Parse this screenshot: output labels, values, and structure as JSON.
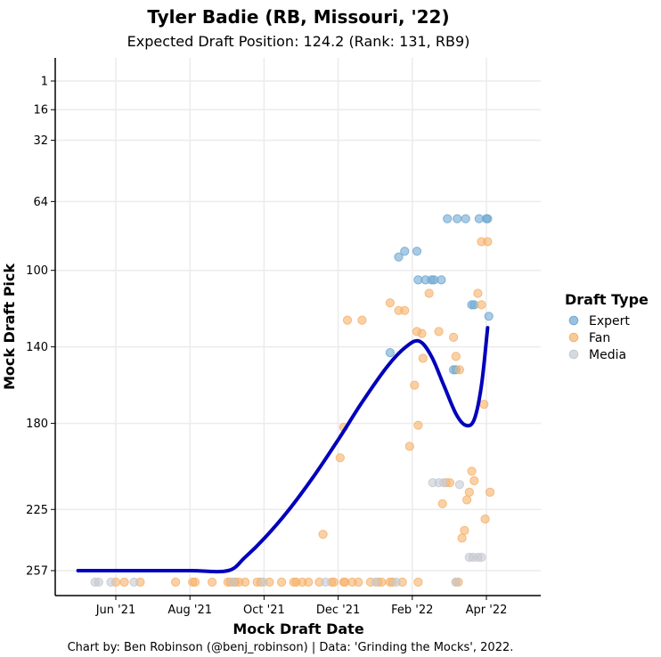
{
  "chart_data": {
    "type": "scatter",
    "title": "Tyler Badie (RB, Missouri, '22)",
    "subtitle": "Expected Draft Position: 124.2 (Rank: 131, RB9)",
    "xlabel": "Mock Draft Date",
    "ylabel": "Mock Draft Pick",
    "caption": "Chart by: Ben Robinson (@benj_robinson) | Data: 'Grinding the Mocks', 2022.",
    "x_ticks": [
      "Jun '21",
      "Aug '21",
      "Oct '21",
      "Dec '21",
      "Feb '22",
      "Apr '22"
    ],
    "y_ticks": [
      1,
      16,
      32,
      64,
      100,
      140,
      180,
      225,
      257
    ],
    "y_reversed": true,
    "grid": true,
    "legend": {
      "title": "Draft Type",
      "position": "right",
      "entries": [
        {
          "name": "Expert",
          "color": "#6fa8d0"
        },
        {
          "name": "Fan",
          "color": "#f6b26b"
        },
        {
          "name": "Media",
          "color": "#c4c9d1"
        }
      ]
    },
    "trend_line": {
      "color": "#0000bb",
      "points": [
        [
          "2021-05-01",
          257
        ],
        [
          "2021-06-15",
          257
        ],
        [
          "2021-08-01",
          257
        ],
        [
          "2021-09-01",
          257
        ],
        [
          "2021-09-15",
          250
        ],
        [
          "2021-10-01",
          240
        ],
        [
          "2021-10-20",
          226
        ],
        [
          "2021-11-10",
          208
        ],
        [
          "2021-12-01",
          188
        ],
        [
          "2021-12-20",
          169
        ],
        [
          "2022-01-10",
          150
        ],
        [
          "2022-01-25",
          140
        ],
        [
          "2022-02-05",
          137
        ],
        [
          "2022-02-15",
          145
        ],
        [
          "2022-02-25",
          160
        ],
        [
          "2022-03-07",
          175
        ],
        [
          "2022-03-15",
          181
        ],
        [
          "2022-03-22",
          178
        ],
        [
          "2022-03-28",
          160
        ],
        [
          "2022-04-02",
          130
        ]
      ]
    },
    "series": [
      {
        "name": "Expert",
        "color": "#6fa8d0",
        "points": [
          [
            "2022-01-12",
            143
          ],
          [
            "2022-01-19",
            93
          ],
          [
            "2022-01-24",
            90
          ],
          [
            "2022-02-03",
            90
          ],
          [
            "2022-02-04",
            105
          ],
          [
            "2022-02-10",
            105
          ],
          [
            "2022-02-15",
            105
          ],
          [
            "2022-02-17",
            105
          ],
          [
            "2022-02-23",
            105
          ],
          [
            "2022-02-28",
            73
          ],
          [
            "2022-03-05",
            152
          ],
          [
            "2022-03-07",
            152
          ],
          [
            "2022-03-08",
            73
          ],
          [
            "2022-03-15",
            73
          ],
          [
            "2022-03-20",
            118
          ],
          [
            "2022-03-22",
            118
          ],
          [
            "2022-03-26",
            73
          ],
          [
            "2022-04-01",
            73
          ],
          [
            "2022-04-02",
            73
          ],
          [
            "2022-04-03",
            124
          ]
        ]
      },
      {
        "name": "Fan",
        "color": "#f6b26b",
        "points": [
          [
            "2021-06-01",
            263
          ],
          [
            "2021-06-08",
            263
          ],
          [
            "2021-06-21",
            263
          ],
          [
            "2021-07-20",
            263
          ],
          [
            "2021-08-03",
            263
          ],
          [
            "2021-08-05",
            263
          ],
          [
            "2021-08-19",
            263
          ],
          [
            "2021-09-01",
            263
          ],
          [
            "2021-09-03",
            263
          ],
          [
            "2021-09-06",
            263
          ],
          [
            "2021-09-07",
            263
          ],
          [
            "2021-09-10",
            263
          ],
          [
            "2021-09-15",
            263
          ],
          [
            "2021-09-25",
            263
          ],
          [
            "2021-09-28",
            263
          ],
          [
            "2021-10-05",
            263
          ],
          [
            "2021-10-15",
            263
          ],
          [
            "2021-10-25",
            263
          ],
          [
            "2021-10-27",
            263
          ],
          [
            "2021-11-01",
            263
          ],
          [
            "2021-11-06",
            263
          ],
          [
            "2021-11-15",
            263
          ],
          [
            "2021-11-25",
            263
          ],
          [
            "2021-11-27",
            263
          ],
          [
            "2021-12-05",
            263
          ],
          [
            "2021-12-06",
            263
          ],
          [
            "2021-12-12",
            263
          ],
          [
            "2021-12-17",
            263
          ],
          [
            "2021-12-27",
            263
          ],
          [
            "2022-01-02",
            263
          ],
          [
            "2022-01-05",
            263
          ],
          [
            "2022-01-12",
            263
          ],
          [
            "2022-01-14",
            263
          ],
          [
            "2022-01-22",
            263
          ],
          [
            "2022-02-04",
            263
          ],
          [
            "2022-03-07",
            263
          ],
          [
            "2022-03-09",
            263
          ],
          [
            "2021-11-18",
            238
          ],
          [
            "2021-12-02",
            198
          ],
          [
            "2021-12-05",
            182
          ],
          [
            "2021-12-08",
            126
          ],
          [
            "2021-12-20",
            126
          ],
          [
            "2022-01-12",
            117
          ],
          [
            "2022-01-19",
            121
          ],
          [
            "2022-01-24",
            121
          ],
          [
            "2022-01-28",
            192
          ],
          [
            "2022-02-01",
            160
          ],
          [
            "2022-02-03",
            132
          ],
          [
            "2022-02-04",
            181
          ],
          [
            "2022-02-07",
            133
          ],
          [
            "2022-02-08",
            146
          ],
          [
            "2022-02-13",
            112
          ],
          [
            "2022-02-21",
            132
          ],
          [
            "2022-02-24",
            222
          ],
          [
            "2022-02-27",
            211
          ],
          [
            "2022-03-02",
            211
          ],
          [
            "2022-03-05",
            135
          ],
          [
            "2022-03-07",
            145
          ],
          [
            "2022-03-10",
            152
          ],
          [
            "2022-03-12",
            240
          ],
          [
            "2022-03-14",
            236
          ],
          [
            "2022-03-16",
            220
          ],
          [
            "2022-03-18",
            216
          ],
          [
            "2022-03-20",
            205
          ],
          [
            "2022-03-22",
            210
          ],
          [
            "2022-03-25",
            112
          ],
          [
            "2022-03-28",
            118
          ],
          [
            "2022-03-30",
            170
          ],
          [
            "2022-04-02",
            85
          ],
          [
            "2022-04-04",
            216
          ],
          [
            "2022-03-28",
            85
          ],
          [
            "2022-03-31",
            230
          ]
        ]
      },
      {
        "name": "Media",
        "color": "#c4c9d1",
        "points": [
          [
            "2021-05-15",
            263
          ],
          [
            "2021-05-18",
            263
          ],
          [
            "2021-05-28",
            263
          ],
          [
            "2021-06-16",
            263
          ],
          [
            "2021-09-05",
            263
          ],
          [
            "2021-09-30",
            263
          ],
          [
            "2021-11-20",
            263
          ],
          [
            "2021-12-31",
            263
          ],
          [
            "2022-01-17",
            263
          ],
          [
            "2022-03-07",
            263
          ],
          [
            "2022-02-16",
            211
          ],
          [
            "2022-02-21",
            211
          ],
          [
            "2022-02-25",
            211
          ],
          [
            "2022-03-10",
            212
          ],
          [
            "2022-03-18",
            250
          ],
          [
            "2022-03-21",
            250
          ],
          [
            "2022-03-25",
            250
          ],
          [
            "2022-03-28",
            250
          ]
        ]
      }
    ]
  }
}
